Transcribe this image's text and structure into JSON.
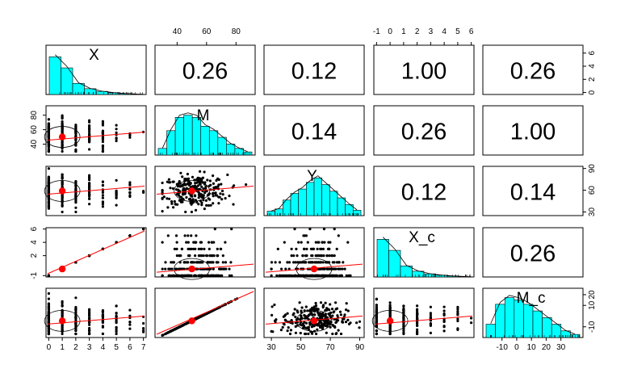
{
  "chart_data": {
    "type": "scatterplot-matrix",
    "variables": [
      "X",
      "M",
      "Y",
      "X_c",
      "M_c"
    ],
    "correlations": {
      "X_M": "0.26",
      "X_Y": "0.12",
      "X_Xc": "1.00",
      "X_Mc": "0.26",
      "M_Y": "0.14",
      "M_Xc": "0.26",
      "M_Mc": "1.00",
      "Y_Xc": "0.12",
      "Y_Mc": "0.14",
      "Xc_Mc": "0.26"
    },
    "axes": {
      "X": {
        "range": [
          -0.2,
          7.2
        ],
        "ticks": [
          "0",
          "1",
          "2",
          "3",
          "4",
          "5",
          "6",
          "7"
        ]
      },
      "M": {
        "range": [
          25,
          93
        ],
        "ticks": [
          "40",
          "60",
          "80"
        ]
      },
      "Y": {
        "range": [
          25,
          93
        ],
        "ticks": [
          "30",
          "50",
          "70",
          "90"
        ]
      },
      "Xc": {
        "range": [
          -1.2,
          6.2
        ],
        "ticks": [
          "-1",
          "0",
          "1",
          "2",
          "3",
          "4",
          "5",
          "6"
        ]
      },
      "Mc": {
        "range": [
          -23,
          45
        ],
        "ticks": [
          "-10",
          "0",
          "10",
          "20",
          "30"
        ]
      },
      "left_X_M": [
        "40",
        "60",
        "80"
      ],
      "left_Xc": [
        "-1",
        "2",
        "4",
        "6"
      ],
      "right_X": [
        "0",
        "2",
        "4",
        "6"
      ],
      "right_Y": [
        "30",
        "60",
        "90"
      ],
      "right_Mc": [
        "-10",
        "10",
        "20"
      ]
    },
    "histograms": {
      "X": {
        "heights": [
          0.85,
          0.6,
          0.25,
          0.13,
          0.07,
          0.04,
          0.02,
          0.01
        ]
      },
      "M": {
        "heights": [
          0.15,
          0.55,
          0.85,
          0.9,
          0.85,
          0.65,
          0.55,
          0.4,
          0.25,
          0.15,
          0.07
        ]
      },
      "Y": {
        "heights": [
          0.1,
          0.15,
          0.35,
          0.5,
          0.6,
          0.75,
          0.85,
          0.7,
          0.55,
          0.4,
          0.25,
          0.12
        ]
      },
      "Xc": {
        "heights": [
          0.85,
          0.6,
          0.25,
          0.13,
          0.07,
          0.04,
          0.02,
          0.01
        ]
      },
      "Mc": {
        "heights": [
          0.3,
          0.75,
          0.9,
          0.85,
          0.75,
          0.6,
          0.45,
          0.3,
          0.15,
          0.07
        ]
      }
    },
    "bivariate_means": {
      "X": 1.0,
      "M": 50,
      "Y": 59,
      "Xc": 0.0,
      "Mc": 0.0
    },
    "colors": {
      "hist_fill": "#00ffff",
      "mean_point": "#ff0000",
      "fit_line": "#ff0000",
      "points": "#000000"
    }
  }
}
